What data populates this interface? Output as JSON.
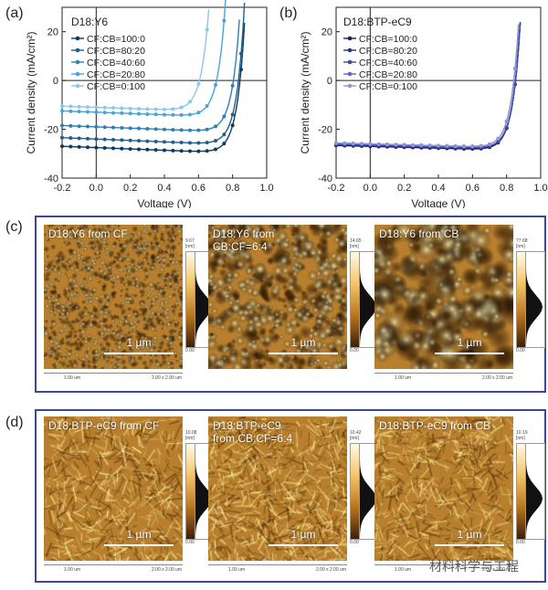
{
  "panel_labels": {
    "a": "(a)",
    "b": "(b)",
    "c": "(c)",
    "d": "(d)"
  },
  "chart_data": [
    {
      "type": "line",
      "panel": "(a)",
      "title": "D18:Y6",
      "xlabel": "Voltage (V)",
      "ylabel": "Current density (mA/cm²)",
      "xlim": [
        -0.2,
        1.0
      ],
      "ylim": [
        -40,
        30
      ],
      "xticks": [
        "-0.2",
        "0.0",
        "0.2",
        "0.4",
        "0.6",
        "0.8",
        "1.0"
      ],
      "yticks": [
        "-40",
        "-20",
        "0",
        "20"
      ],
      "series": [
        {
          "name": "CF:CB=100:0",
          "color": "#0f3a5c",
          "jsc": -27.5,
          "voc": 0.84,
          "kink": 0.1
        },
        {
          "name": "CF:CB=80:20",
          "color": "#1f5f8f",
          "jsc": -24.0,
          "voc": 0.83,
          "kink": 0.12
        },
        {
          "name": "CF:CB=40:60",
          "color": "#2f7fb8",
          "jsc": -19.0,
          "voc": 0.8,
          "kink": 0.14
        },
        {
          "name": "CF:CB=20:80",
          "color": "#4aa3d6",
          "jsc": -13.0,
          "voc": 0.7,
          "kink": 0.2
        },
        {
          "name": "CF:CB=0:100",
          "color": "#8cc8ea",
          "jsc": -11.0,
          "voc": 0.6,
          "kink": 0.22
        }
      ]
    },
    {
      "type": "line",
      "panel": "(b)",
      "title": "D18:BTP-eC9",
      "xlabel": "Voltage (V)",
      "ylabel": "Current density (mA/cm²)",
      "xlim": [
        -0.2,
        1.0
      ],
      "ylim": [
        -40,
        30
      ],
      "xticks": [
        "-0.2",
        "0.0",
        "0.2",
        "0.4",
        "0.6",
        "0.8",
        "1.0"
      ],
      "yticks": [
        "-40",
        "-20",
        "0",
        "20"
      ],
      "series": [
        {
          "name": "CF:CB=100:0",
          "color": "#1d1d6b",
          "jsc": -27.0,
          "voc": 0.85,
          "kink": 0.07
        },
        {
          "name": "CF:CB=80:20",
          "color": "#2b2f8a",
          "jsc": -26.5,
          "voc": 0.85,
          "kink": 0.07
        },
        {
          "name": "CF:CB=40:60",
          "color": "#3f4aa8",
          "jsc": -26.5,
          "voc": 0.85,
          "kink": 0.07
        },
        {
          "name": "CF:CB=20:80",
          "color": "#5a68c0",
          "jsc": -26.0,
          "voc": 0.84,
          "kink": 0.07
        },
        {
          "name": "CF:CB=0:100",
          "color": "#8f98d6",
          "jsc": -26.0,
          "voc": 0.84,
          "kink": 0.07
        }
      ]
    }
  ],
  "afm_c": [
    {
      "title": "D18:Y6  from CF",
      "scale": "1 µm",
      "cbar_top": "9.67\n[nm]",
      "cbar_bot": "0.00",
      "ax_left": "1.00 um",
      "ax_right": "2.00 x 2.00 um",
      "grain": "fine"
    },
    {
      "title": "D18:Y6  from\nCB:CF=6:4",
      "scale": "1 µm",
      "cbar_top": "14.65\n[nm]",
      "cbar_bot": "0.00",
      "ax_left": "",
      "ax_right": "",
      "grain": "medium"
    },
    {
      "title": "D18:Y6  from CB",
      "scale": "1 µm",
      "cbar_top": "77.68\n[nm]",
      "cbar_bot": "0.00",
      "ax_left": "1.00 um",
      "ax_right": "2.00 x 2.00 um",
      "grain": "coarse"
    }
  ],
  "afm_d": [
    {
      "title": "D18:BTP-eC9 from CF",
      "scale": "1 µm",
      "cbar_top": "10.08\n[nm]",
      "cbar_bot": "0.00",
      "ax_left": "1.00 um",
      "ax_right": "2.00 x 2.00 um",
      "grain": "fibril"
    },
    {
      "title": "D18:BTP-eC9\nfrom CB:CF=6:4",
      "scale": "1 µm",
      "cbar_top": "10.42\n[nm]",
      "cbar_bot": "0.00",
      "ax_left": "1.00 um",
      "ax_right": "2.00 x 2.00 um",
      "grain": "fibril2"
    },
    {
      "title": "D18:BTP-eC9  from CB",
      "scale": "1 µm",
      "cbar_top": "10.19\n[nm]",
      "cbar_bot": "0.00",
      "ax_left": "1.00 um",
      "ax_right": "2.00 x 2.00 um",
      "grain": "fibril"
    }
  ],
  "watermark": "材料科学与工程"
}
